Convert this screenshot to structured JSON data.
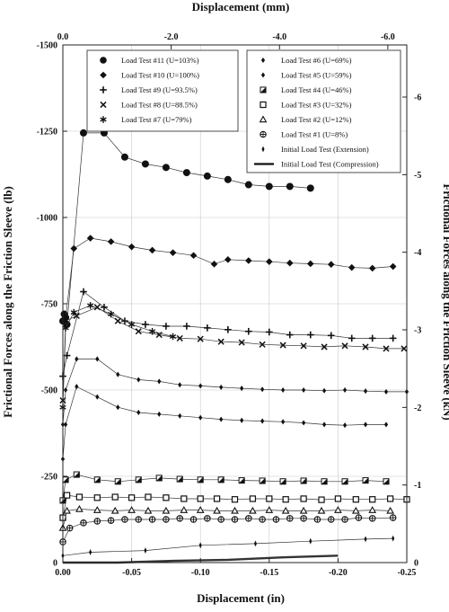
{
  "chart_data": {
    "type": "line",
    "title": "",
    "xlabel": "Displacement (in)",
    "x2label": "Displacement (mm)",
    "ylabel": "Frictional Forces along the Friction Sleeve (lb)",
    "y2label": "Frictional Forces along the Friction Sleeve (kN)",
    "xlim": [
      0.0,
      -0.25
    ],
    "ylim": [
      0,
      -1500
    ],
    "x2lim": [
      0.0,
      -6.35
    ],
    "y2lim": [
      0,
      -6.672
    ],
    "xticks": [
      "0.00",
      "-0.05",
      "-0.10",
      "-0.15",
      "-0.20",
      "-0.25"
    ],
    "yticks": [
      "0",
      "-250",
      "-500",
      "-750",
      "-1000",
      "-1250",
      "-1500"
    ],
    "x2ticks": [
      "0.0",
      "-2.0",
      "-4.0",
      "-6.0"
    ],
    "y2ticks": [
      "0",
      "-1",
      "-2",
      "-3",
      "-4",
      "-5",
      "-6"
    ],
    "grid": true,
    "legend_position": "top",
    "series": [
      {
        "name": "Load Test #11 (U=103%)",
        "marker": "circle",
        "x": [
          0.0,
          -0.001,
          -0.002,
          -0.003,
          -0.015,
          -0.03,
          -0.045,
          -0.06,
          -0.075,
          -0.09,
          -0.105,
          -0.12,
          -0.135,
          -0.15,
          -0.165,
          -0.18
        ],
        "y": [
          -700,
          -720,
          -710,
          -690,
          -1245,
          -1245,
          -1175,
          -1155,
          -1145,
          -1130,
          -1120,
          -1110,
          -1095,
          -1090,
          -1090,
          -1085
        ]
      },
      {
        "name": "Load Test #10 (U=100%)",
        "marker": "diamond",
        "x": [
          0.0,
          -0.002,
          -0.008,
          -0.02,
          -0.035,
          -0.05,
          -0.065,
          -0.08,
          -0.095,
          -0.11,
          -0.12,
          -0.135,
          -0.15,
          -0.165,
          -0.18,
          -0.195,
          -0.21,
          -0.225,
          -0.24
        ],
        "y": [
          -700,
          -710,
          -910,
          -940,
          -930,
          -915,
          -905,
          -898,
          -890,
          -865,
          -878,
          -875,
          -872,
          -868,
          -866,
          -864,
          -855,
          -853,
          -858
        ]
      },
      {
        "name": "Load Test #9 (U=93.5%)",
        "marker": "plus",
        "x": [
          0.0,
          -0.003,
          -0.015,
          -0.03,
          -0.045,
          -0.06,
          -0.075,
          -0.09,
          -0.105,
          -0.12,
          -0.135,
          -0.15,
          -0.165,
          -0.18,
          -0.195,
          -0.21,
          -0.225,
          -0.24
        ],
        "y": [
          -540,
          -600,
          -785,
          -740,
          -700,
          -690,
          -685,
          -685,
          -680,
          -675,
          -670,
          -668,
          -660,
          -660,
          -658,
          -650,
          -650,
          -650
        ]
      },
      {
        "name": "Load Test #8 (U=88.5%)",
        "marker": "x",
        "x": [
          0.0,
          -0.002,
          -0.01,
          -0.025,
          -0.04,
          -0.055,
          -0.07,
          -0.085,
          -0.1,
          -0.115,
          -0.13,
          -0.145,
          -0.16,
          -0.175,
          -0.19,
          -0.205,
          -0.22,
          -0.235,
          -0.248
        ],
        "y": [
          -470,
          -700,
          -715,
          -740,
          -700,
          -670,
          -660,
          -650,
          -648,
          -640,
          -638,
          -632,
          -630,
          -628,
          -625,
          -628,
          -625,
          -620,
          -620
        ]
      },
      {
        "name": "Load Test #7 (U=79%)",
        "marker": "asterisk",
        "x": [
          0.0,
          -0.002,
          -0.008,
          -0.02,
          -0.035,
          -0.05,
          -0.065,
          -0.08
        ],
        "y": [
          -450,
          -680,
          -725,
          -745,
          -720,
          -690,
          -670,
          -655
        ]
      },
      {
        "name": "Load Test #6 (U=69%)",
        "marker": "small-diamond",
        "x": [
          0.0,
          -0.002,
          -0.01,
          -0.025,
          -0.04,
          -0.055,
          -0.07,
          -0.085,
          -0.1,
          -0.115,
          -0.13,
          -0.145,
          -0.16,
          -0.175,
          -0.19,
          -0.205,
          -0.22,
          -0.235,
          -0.25
        ],
        "y": [
          -400,
          -500,
          -590,
          -590,
          -545,
          -530,
          -525,
          -515,
          -512,
          -508,
          -505,
          -502,
          -500,
          -500,
          -498,
          -500,
          -497,
          -495,
          -495
        ]
      },
      {
        "name": "Load Test #5 (U=59%)",
        "marker": "small-diamond",
        "x": [
          0.0,
          -0.002,
          -0.01,
          -0.025,
          -0.04,
          -0.055,
          -0.07,
          -0.085,
          -0.1,
          -0.115,
          -0.13,
          -0.145,
          -0.16,
          -0.175,
          -0.19,
          -0.205,
          -0.22,
          -0.235
        ],
        "y": [
          -300,
          -400,
          -510,
          -480,
          -450,
          -435,
          -430,
          -425,
          -420,
          -415,
          -412,
          -410,
          -408,
          -405,
          -400,
          -398,
          -400,
          -400
        ]
      },
      {
        "name": "Load Test #4 (U=46%)",
        "marker": "half-square",
        "x": [
          0.0,
          -0.002,
          -0.01,
          -0.025,
          -0.04,
          -0.055,
          -0.07,
          -0.085,
          -0.1,
          -0.115,
          -0.13,
          -0.145,
          -0.16,
          -0.175,
          -0.19,
          -0.205,
          -0.22,
          -0.235
        ],
        "y": [
          -180,
          -240,
          -255,
          -240,
          -235,
          -240,
          -245,
          -242,
          -240,
          -240,
          -238,
          -237,
          -235,
          -237,
          -235,
          -235,
          -238,
          -235
        ]
      },
      {
        "name": "Load Test #3 (U=32%)",
        "marker": "square",
        "x": [
          0.0,
          -0.003,
          -0.012,
          -0.025,
          -0.038,
          -0.05,
          -0.062,
          -0.075,
          -0.088,
          -0.1,
          -0.112,
          -0.125,
          -0.138,
          -0.15,
          -0.162,
          -0.175,
          -0.188,
          -0.2,
          -0.213,
          -0.225,
          -0.238,
          -0.25
        ],
        "y": [
          -130,
          -195,
          -190,
          -188,
          -190,
          -188,
          -190,
          -188,
          -185,
          -185,
          -185,
          -183,
          -185,
          -185,
          -183,
          -185,
          -182,
          -185,
          -183,
          -183,
          -185,
          -183
        ]
      },
      {
        "name": "Load Test #2 (U=12%)",
        "marker": "triangle",
        "x": [
          0.0,
          -0.003,
          -0.012,
          -0.025,
          -0.038,
          -0.05,
          -0.062,
          -0.075,
          -0.088,
          -0.1,
          -0.112,
          -0.125,
          -0.138,
          -0.15,
          -0.162,
          -0.175,
          -0.188,
          -0.2,
          -0.213,
          -0.225,
          -0.238
        ],
        "y": [
          -100,
          -150,
          -155,
          -152,
          -150,
          -152,
          -150,
          -150,
          -152,
          -152,
          -150,
          -150,
          -150,
          -152,
          -150,
          -150,
          -150,
          -152,
          -150,
          -152,
          -150
        ]
      },
      {
        "name": "Load Test #1 (U=8%)",
        "marker": "crossed-circle",
        "x": [
          0.0,
          -0.005,
          -0.015,
          -0.025,
          -0.035,
          -0.045,
          -0.055,
          -0.065,
          -0.075,
          -0.085,
          -0.095,
          -0.105,
          -0.115,
          -0.125,
          -0.135,
          -0.145,
          -0.155,
          -0.165,
          -0.175,
          -0.185,
          -0.195,
          -0.205,
          -0.215,
          -0.225,
          -0.24
        ],
        "y": [
          -60,
          -100,
          -115,
          -120,
          -122,
          -125,
          -125,
          -125,
          -125,
          -128,
          -125,
          -128,
          -125,
          -125,
          -128,
          -125,
          -125,
          -128,
          -128,
          -125,
          -125,
          -125,
          -130,
          -128,
          -130
        ]
      },
      {
        "name": "Initial Load Test (Extension)",
        "marker": "thin-diamond",
        "x": [
          0.0,
          -0.02,
          -0.06,
          -0.1,
          -0.14,
          -0.18,
          -0.22,
          -0.24
        ],
        "y": [
          -20,
          -30,
          -35,
          -50,
          -55,
          -62,
          -68,
          -70
        ]
      },
      {
        "name": "Initial Load Test (Compression)",
        "marker": "none",
        "x": [
          0.0,
          -0.04,
          -0.08,
          -0.12,
          -0.16,
          -0.2
        ],
        "y": [
          0,
          0,
          -5,
          -8,
          -15,
          -20
        ]
      }
    ]
  }
}
